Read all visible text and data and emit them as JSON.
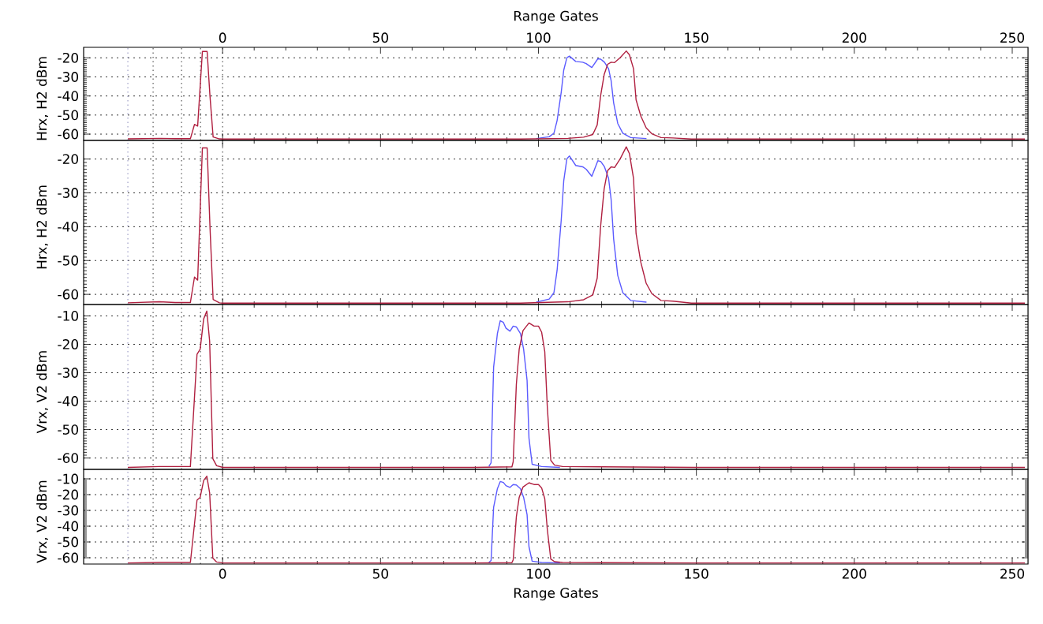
{
  "chart_data": [
    {
      "type": "line",
      "x2label": "Range Gates",
      "x2lim": [
        -44,
        255
      ],
      "x2ticks": [
        0,
        50,
        100,
        150,
        200,
        250
      ],
      "xlim": [
        -44,
        255
      ],
      "xticks": [
        0,
        50,
        100,
        150,
        200,
        250
      ],
      "ylim": [
        -63.3,
        -14.5
      ],
      "yticks": [
        -20,
        -30,
        -40,
        -50,
        -60
      ],
      "ylabel": "Hrx, H2 dBm",
      "tick_labels": "y",
      "grid": "y",
      "ref_lines": [
        {
          "axis": "x",
          "value": -30,
          "color": "#6a6aa8",
          "line_style": "dotted"
        },
        {
          "axis": "x",
          "value": -22,
          "color": "#000000",
          "line_style": "dotted"
        },
        {
          "axis": "x",
          "value": -13,
          "color": "#000000",
          "line_style": "dotted"
        },
        {
          "axis": "x",
          "value": -7,
          "color": "#000000",
          "line_style": "dotted"
        },
        {
          "axis": "x",
          "value": 0,
          "color": "#000000",
          "line_style": "dotted"
        }
      ],
      "series": [
        {
          "color": "#5b5bff",
          "x": [
            99.3,
            103.4,
            104.9,
            105.9,
            107.2,
            108.0,
            109.0,
            109.8,
            111.8,
            114.0,
            115.1,
            116.9,
            118.8,
            119.7,
            120.9,
            122.2,
            123.0,
            123.8,
            125.1,
            126.7,
            129.2,
            134.2
          ],
          "values": [
            -62.3,
            -61.4,
            -59.5,
            -52.9,
            -38.1,
            -26.5,
            -19.9,
            -19.1,
            -21.9,
            -22.3,
            -23.0,
            -25.1,
            -20.5,
            -20.7,
            -22.3,
            -25.7,
            -31.9,
            -43.6,
            -54.4,
            -59.5,
            -61.8,
            -62.3
          ]
        },
        {
          "color": "#b02040",
          "x": [
            -30,
            -20,
            -15,
            -10.2,
            -8.9,
            -7.9,
            -6.4,
            -4.9,
            -4,
            -3,
            -1,
            0,
            50,
            94.3,
            109.3,
            114.3,
            117.2,
            118.6,
            119.7,
            120.8,
            121.9,
            123.0,
            124.1,
            125.9,
            127.8,
            128.8,
            130.1,
            130.9,
            132.4,
            134.1,
            135.9,
            138.8,
            142.6,
            148.4,
            200,
            254
          ],
          "values": [
            -62.5,
            -62.2,
            -62.4,
            -62.4,
            -54.9,
            -55.8,
            -16.7,
            -16.7,
            -40,
            -61.5,
            -62.5,
            -62.6,
            -62.6,
            -62.6,
            -62.2,
            -61.6,
            -60.2,
            -55.2,
            -39.7,
            -28.8,
            -23.4,
            -22.3,
            -22.5,
            -19.9,
            -16.4,
            -18.4,
            -25.7,
            -42.0,
            -50.5,
            -56.7,
            -59.8,
            -61.8,
            -62.0,
            -62.6,
            -62.6,
            -62.6
          ]
        }
      ]
    },
    {
      "type": "line",
      "xlim": [
        -44,
        255
      ],
      "xticks": [
        0,
        50,
        100,
        150,
        200,
        250
      ],
      "ylim": [
        -63,
        -14.5
      ],
      "yticks": [
        -20,
        -30,
        -40,
        -50,
        -60
      ],
      "ylabel": "Hrx, H2 dBm",
      "tick_labels": "y",
      "grid": "y",
      "ref_lines": [
        {
          "axis": "x",
          "value": -30,
          "color": "#6a6aa8",
          "line_style": "dotted"
        },
        {
          "axis": "x",
          "value": -22,
          "color": "#000000",
          "line_style": "dotted"
        },
        {
          "axis": "x",
          "value": -13,
          "color": "#000000",
          "line_style": "dotted"
        },
        {
          "axis": "x",
          "value": -7,
          "color": "#000000",
          "line_style": "dotted"
        },
        {
          "axis": "x",
          "value": 0,
          "color": "#000000",
          "line_style": "dotted"
        }
      ],
      "series": [
        {
          "color": "#5b5bff",
          "x": [
            99.3,
            103.4,
            104.9,
            105.9,
            107.2,
            108.0,
            109.0,
            109.8,
            111.8,
            114.0,
            115.1,
            116.9,
            118.8,
            119.7,
            120.9,
            122.2,
            123.0,
            123.8,
            125.1,
            126.7,
            129.2,
            134.2
          ],
          "values": [
            -62.3,
            -61.4,
            -59.5,
            -52.9,
            -38.1,
            -26.5,
            -19.9,
            -19.1,
            -21.9,
            -22.3,
            -23.0,
            -25.1,
            -20.5,
            -20.7,
            -22.3,
            -25.7,
            -31.9,
            -43.6,
            -54.4,
            -59.5,
            -61.8,
            -62.3
          ]
        },
        {
          "color": "#b02040",
          "x": [
            -30,
            -20,
            -15,
            -10.2,
            -8.9,
            -7.9,
            -6.4,
            -4.9,
            -4,
            -3,
            -1,
            0,
            50,
            94.3,
            109.3,
            114.3,
            117.2,
            118.6,
            119.7,
            120.8,
            121.9,
            123.0,
            124.1,
            125.9,
            127.8,
            128.8,
            130.1,
            130.9,
            132.4,
            134.1,
            135.9,
            138.8,
            142.6,
            148.4,
            200,
            254
          ],
          "values": [
            -62.5,
            -62.2,
            -62.4,
            -62.4,
            -54.9,
            -55.8,
            -16.7,
            -16.7,
            -40,
            -61.5,
            -62.5,
            -62.6,
            -62.6,
            -62.6,
            -62.2,
            -61.6,
            -60.2,
            -55.2,
            -39.7,
            -28.8,
            -23.4,
            -22.3,
            -22.5,
            -19.9,
            -16.4,
            -18.4,
            -25.7,
            -42.0,
            -50.5,
            -56.7,
            -59.8,
            -61.8,
            -62.0,
            -62.6,
            -62.6,
            -62.6
          ]
        }
      ]
    },
    {
      "type": "line",
      "xlim": [
        -44,
        255
      ],
      "xticks": [
        0,
        50,
        100,
        150,
        200,
        250
      ],
      "ylim": [
        -64,
        -6
      ],
      "yticks": [
        -10,
        -20,
        -30,
        -40,
        -50,
        -60
      ],
      "ylabel": "Vrx, V2 dBm",
      "tick_labels": "y",
      "grid": "y",
      "ref_lines": [
        {
          "axis": "x",
          "value": -30,
          "color": "#6a6aa8",
          "line_style": "dotted"
        },
        {
          "axis": "x",
          "value": -22,
          "color": "#000000",
          "line_style": "dotted"
        },
        {
          "axis": "x",
          "value": -13,
          "color": "#000000",
          "line_style": "dotted"
        },
        {
          "axis": "x",
          "value": -7,
          "color": "#000000",
          "line_style": "dotted"
        },
        {
          "axis": "x",
          "value": 0,
          "color": "#000000",
          "line_style": "dotted"
        }
      ],
      "series": [
        {
          "color": "#5b5bff",
          "x": [
            84.3,
            85.0,
            85.8,
            87.0,
            87.9,
            88.9,
            89.7,
            91.0,
            92.0,
            93.0,
            94.3,
            95.3,
            96.4,
            97.0,
            98.0,
            101.0,
            106.8
          ],
          "values": [
            -63.0,
            -61.7,
            -28.1,
            -16.2,
            -11.7,
            -12.3,
            -14.3,
            -15.4,
            -13.6,
            -13.9,
            -16.2,
            -21.7,
            -32.7,
            -53.0,
            -62.2,
            -63.0,
            -63.3
          ]
        },
        {
          "color": "#b02040",
          "x": [
            -30,
            -20,
            -10.2,
            -8.1,
            -7.1,
            -6.0,
            -5.0,
            -4.1,
            -3.1,
            -1.9,
            0.1,
            50,
            79.3,
            91.6,
            92.0,
            93.0,
            93.9,
            95.1,
            97.0,
            98.6,
            100.0,
            101.0,
            102.0,
            102.8,
            103.9,
            105.1,
            107.6,
            150,
            200,
            254
          ],
          "values": [
            -63.3,
            -63.0,
            -63.0,
            -23.5,
            -21.7,
            -11.1,
            -8.3,
            -18.9,
            -60.2,
            -62.7,
            -63.3,
            -63.3,
            -63.3,
            -63.1,
            -61.3,
            -34.1,
            -21.7,
            -15.2,
            -12.5,
            -13.6,
            -13.6,
            -15.7,
            -22.6,
            -42.0,
            -60.8,
            -62.5,
            -63.0,
            -63.3,
            -63.3,
            -63.3
          ]
        }
      ]
    },
    {
      "type": "line",
      "xlabel": "Range Gates",
      "xlim": [
        -44,
        255
      ],
      "xticks": [
        0,
        50,
        100,
        150,
        200,
        250
      ],
      "ylim": [
        -64,
        -4
      ],
      "yticks": [
        -10,
        -20,
        -30,
        -40,
        -50,
        -60
      ],
      "ylabel": "Vrx, V2 dBm",
      "grid": "y",
      "ref_lines": [
        {
          "axis": "x",
          "value": -30,
          "color": "#6a6aa8",
          "line_style": "dotted"
        },
        {
          "axis": "x",
          "value": -22,
          "color": "#000000",
          "line_style": "dotted"
        },
        {
          "axis": "x",
          "value": -13,
          "color": "#000000",
          "line_style": "dotted"
        },
        {
          "axis": "x",
          "value": -7,
          "color": "#000000",
          "line_style": "dotted"
        },
        {
          "axis": "x",
          "value": 0,
          "color": "#000000",
          "line_style": "dotted"
        }
      ],
      "series": [
        {
          "color": "#5b5bff",
          "x": [
            84.3,
            85.0,
            85.8,
            87.0,
            87.9,
            88.9,
            89.7,
            91.0,
            92.0,
            93.0,
            94.3,
            95.3,
            96.4,
            97.0,
            98.0,
            101.0,
            106.8
          ],
          "values": [
            -63.0,
            -61.7,
            -28.1,
            -16.2,
            -11.7,
            -12.3,
            -14.3,
            -15.4,
            -13.6,
            -13.9,
            -16.2,
            -21.7,
            -32.7,
            -53.0,
            -62.2,
            -63.0,
            -63.3
          ]
        },
        {
          "color": "#b02040",
          "x": [
            -30,
            -20,
            -10.2,
            -8.1,
            -7.1,
            -6.0,
            -5.0,
            -4.1,
            -3.1,
            -1.9,
            0.1,
            50,
            79.3,
            91.6,
            92.0,
            93.0,
            93.9,
            95.1,
            97.0,
            98.6,
            100.0,
            101.0,
            102.0,
            102.8,
            103.9,
            105.1,
            107.6,
            150,
            200,
            254
          ],
          "values": [
            -63.3,
            -63.0,
            -63.0,
            -23.5,
            -21.7,
            -11.1,
            -8.3,
            -18.9,
            -60.2,
            -62.7,
            -63.3,
            -63.3,
            -63.3,
            -63.1,
            -61.3,
            -34.1,
            -21.7,
            -15.2,
            -12.5,
            -13.6,
            -13.6,
            -15.7,
            -22.6,
            -42.0,
            -60.8,
            -62.5,
            -63.0,
            -63.3,
            -63.3,
            -63.3
          ]
        }
      ]
    }
  ]
}
